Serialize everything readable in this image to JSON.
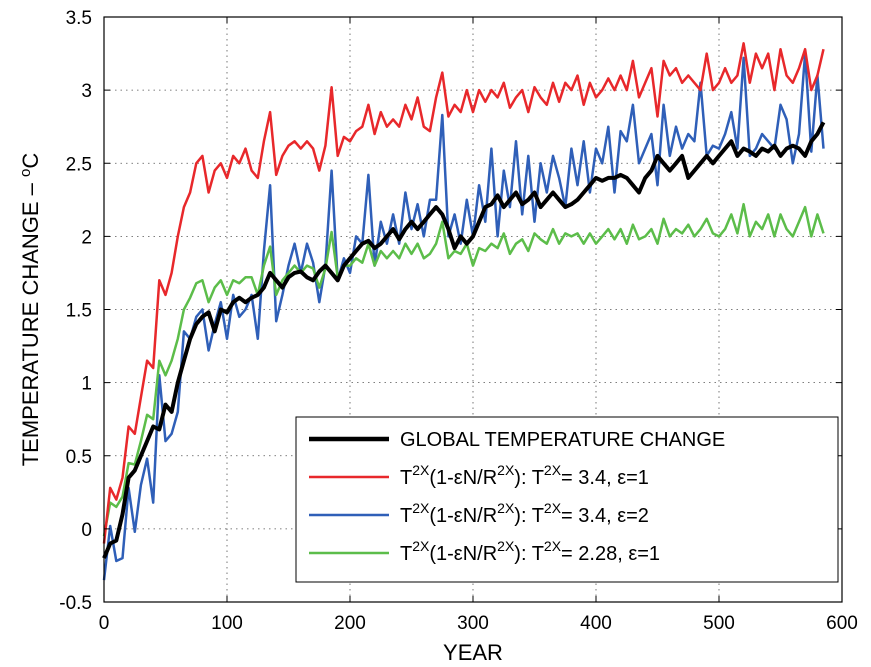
{
  "chart_data": {
    "type": "line",
    "xlabel": "YEAR",
    "ylabel_main": "TEMPERATURE CHANGE – ",
    "ylabel_sup": "o",
    "ylabel_unit": "C",
    "xlim": [
      0,
      600
    ],
    "ylim": [
      -0.5,
      3.5
    ],
    "xticks": [
      0,
      100,
      200,
      300,
      400,
      500,
      600
    ],
    "yticks": [
      -0.5,
      0,
      0.5,
      1,
      1.5,
      2,
      2.5,
      3,
      3.5
    ],
    "xtick_labels": [
      "0",
      "100",
      "200",
      "300",
      "400",
      "500",
      "600"
    ],
    "ytick_labels": [
      "-0.5",
      "0",
      "0.5",
      "1",
      "1.5",
      "2",
      "2.5",
      "3",
      "3.5"
    ],
    "grid": true,
    "legend_position": "lower-right",
    "series": [
      {
        "legend": [
          {
            "t": "GLOBAL TEMPERATURE CHANGE"
          }
        ],
        "color": "#000000",
        "width": 4,
        "x": [
          0,
          5,
          10,
          15,
          20,
          25,
          30,
          35,
          40,
          45,
          50,
          55,
          60,
          65,
          70,
          75,
          80,
          85,
          90,
          95,
          100,
          105,
          110,
          115,
          120,
          125,
          130,
          135,
          140,
          145,
          150,
          155,
          160,
          165,
          170,
          175,
          180,
          185,
          190,
          195,
          200,
          205,
          210,
          215,
          220,
          225,
          230,
          235,
          240,
          245,
          250,
          255,
          260,
          265,
          270,
          275,
          280,
          285,
          290,
          295,
          300,
          305,
          310,
          315,
          320,
          325,
          330,
          335,
          340,
          345,
          350,
          355,
          360,
          365,
          370,
          375,
          380,
          385,
          390,
          395,
          400,
          405,
          410,
          415,
          420,
          425,
          430,
          435,
          440,
          445,
          450,
          455,
          460,
          465,
          470,
          475,
          480,
          485,
          490,
          495,
          500,
          505,
          510,
          515,
          520,
          525,
          530,
          535,
          540,
          545,
          550,
          555,
          560,
          565,
          570,
          575,
          580,
          585
        ],
        "y": [
          -0.2,
          -0.1,
          -0.08,
          0.1,
          0.35,
          0.4,
          0.5,
          0.6,
          0.7,
          0.68,
          0.85,
          0.8,
          1.0,
          1.15,
          1.3,
          1.4,
          1.45,
          1.48,
          1.35,
          1.5,
          1.48,
          1.55,
          1.58,
          1.55,
          1.58,
          1.6,
          1.65,
          1.75,
          1.7,
          1.65,
          1.72,
          1.75,
          1.76,
          1.72,
          1.7,
          1.76,
          1.8,
          1.75,
          1.7,
          1.8,
          1.85,
          1.9,
          1.95,
          1.97,
          1.92,
          1.95,
          2.0,
          2.05,
          1.98,
          2.05,
          2.1,
          2.05,
          2.1,
          2.15,
          2.2,
          2.15,
          2.05,
          1.92,
          2.0,
          1.95,
          2.0,
          2.1,
          2.2,
          2.22,
          2.28,
          2.2,
          2.25,
          2.3,
          2.22,
          2.25,
          2.3,
          2.2,
          2.25,
          2.3,
          2.25,
          2.2,
          2.22,
          2.25,
          2.3,
          2.35,
          2.4,
          2.38,
          2.4,
          2.4,
          2.42,
          2.4,
          2.35,
          2.3,
          2.4,
          2.45,
          2.55,
          2.5,
          2.45,
          2.5,
          2.55,
          2.4,
          2.45,
          2.5,
          2.55,
          2.5,
          2.55,
          2.6,
          2.65,
          2.55,
          2.6,
          2.58,
          2.55,
          2.6,
          2.58,
          2.62,
          2.55,
          2.6,
          2.62,
          2.6,
          2.55,
          2.65,
          2.7,
          2.78
        ]
      },
      {
        "legend": [
          {
            "t": "T"
          },
          {
            "t": "2X",
            "sup": true
          },
          {
            "t": "(1-εN/R"
          },
          {
            "t": "2X",
            "sup": true
          },
          {
            "t": "): T"
          },
          {
            "t": "2X",
            "sup": true
          },
          {
            "t": "= 3.4, ε=1"
          }
        ],
        "color": "#e8282b",
        "width": 2.5,
        "x": [
          0,
          5,
          10,
          15,
          20,
          25,
          30,
          35,
          40,
          45,
          50,
          55,
          60,
          65,
          70,
          75,
          80,
          85,
          90,
          95,
          100,
          105,
          110,
          115,
          120,
          125,
          130,
          135,
          140,
          145,
          150,
          155,
          160,
          165,
          170,
          175,
          180,
          185,
          190,
          195,
          200,
          205,
          210,
          215,
          220,
          225,
          230,
          235,
          240,
          245,
          250,
          255,
          260,
          265,
          270,
          275,
          280,
          285,
          290,
          295,
          300,
          305,
          310,
          315,
          320,
          325,
          330,
          335,
          340,
          345,
          350,
          355,
          360,
          365,
          370,
          375,
          380,
          385,
          390,
          395,
          400,
          405,
          410,
          415,
          420,
          425,
          430,
          435,
          440,
          445,
          450,
          455,
          460,
          465,
          470,
          475,
          480,
          485,
          490,
          495,
          500,
          505,
          510,
          515,
          520,
          525,
          530,
          535,
          540,
          545,
          550,
          555,
          560,
          565,
          570,
          575,
          580,
          585
        ],
        "y": [
          -0.1,
          0.28,
          0.2,
          0.35,
          0.7,
          0.65,
          0.9,
          1.15,
          1.1,
          1.7,
          1.6,
          1.75,
          2.0,
          2.2,
          2.3,
          2.5,
          2.55,
          2.3,
          2.45,
          2.5,
          2.4,
          2.55,
          2.5,
          2.6,
          2.45,
          2.4,
          2.65,
          2.85,
          2.42,
          2.55,
          2.62,
          2.65,
          2.6,
          2.65,
          2.6,
          2.45,
          2.62,
          3.02,
          2.55,
          2.68,
          2.65,
          2.72,
          2.75,
          2.9,
          2.7,
          2.85,
          2.75,
          2.8,
          2.75,
          2.9,
          2.8,
          2.95,
          2.75,
          2.72,
          2.95,
          3.12,
          2.82,
          2.9,
          2.85,
          3.0,
          2.85,
          3.0,
          2.92,
          3.0,
          2.95,
          3.05,
          2.88,
          2.95,
          3.0,
          2.85,
          3.02,
          2.95,
          2.9,
          3.05,
          2.92,
          3.05,
          3.0,
          3.1,
          2.9,
          3.05,
          2.95,
          3.0,
          3.08,
          3.0,
          3.1,
          3.0,
          3.2,
          2.95,
          3.05,
          3.15,
          2.82,
          3.2,
          3.1,
          3.15,
          3.05,
          3.1,
          3.05,
          3.0,
          3.25,
          3.0,
          3.05,
          3.15,
          3.05,
          3.1,
          3.32,
          3.05,
          3.25,
          3.15,
          3.25,
          3.0,
          3.28,
          3.1,
          3.05,
          3.15,
          3.28,
          3.0,
          3.1,
          3.28
        ]
      },
      {
        "legend": [
          {
            "t": "T"
          },
          {
            "t": "2X",
            "sup": true
          },
          {
            "t": "(1-εN/R"
          },
          {
            "t": "2X",
            "sup": true
          },
          {
            "t": "): T"
          },
          {
            "t": "2X",
            "sup": true
          },
          {
            "t": "= 3.4, ε=2"
          }
        ],
        "color": "#2f5fb8",
        "width": 2.5,
        "x": [
          0,
          5,
          10,
          15,
          20,
          25,
          30,
          35,
          40,
          45,
          50,
          55,
          60,
          65,
          70,
          75,
          80,
          85,
          90,
          95,
          100,
          105,
          110,
          115,
          120,
          125,
          130,
          135,
          140,
          145,
          150,
          155,
          160,
          165,
          170,
          175,
          180,
          185,
          190,
          195,
          200,
          205,
          210,
          215,
          220,
          225,
          230,
          235,
          240,
          245,
          250,
          255,
          260,
          265,
          270,
          275,
          280,
          285,
          290,
          295,
          300,
          305,
          310,
          315,
          320,
          325,
          330,
          335,
          340,
          345,
          350,
          355,
          360,
          365,
          370,
          375,
          380,
          385,
          390,
          395,
          400,
          405,
          410,
          415,
          420,
          425,
          430,
          435,
          440,
          445,
          450,
          455,
          460,
          465,
          470,
          475,
          480,
          485,
          490,
          495,
          500,
          505,
          510,
          515,
          520,
          525,
          530,
          535,
          540,
          545,
          550,
          555,
          560,
          565,
          570,
          575,
          580,
          585
        ],
        "y": [
          -0.35,
          0.02,
          -0.22,
          -0.2,
          0.28,
          -0.02,
          0.3,
          0.48,
          0.18,
          1.05,
          0.6,
          0.65,
          0.8,
          1.35,
          1.3,
          1.45,
          1.5,
          1.22,
          1.4,
          1.55,
          1.3,
          1.6,
          1.45,
          1.5,
          1.6,
          1.3,
          1.9,
          2.35,
          1.42,
          1.6,
          1.8,
          1.95,
          1.75,
          1.95,
          1.82,
          1.55,
          1.8,
          2.45,
          1.7,
          1.85,
          1.75,
          2.0,
          1.95,
          2.42,
          1.8,
          2.1,
          1.95,
          2.15,
          1.95,
          2.3,
          2.05,
          2.22,
          2.0,
          2.25,
          2.25,
          2.83,
          2.0,
          2.15,
          1.95,
          2.25,
          2.0,
          2.35,
          2.1,
          2.6,
          2.0,
          2.45,
          2.2,
          2.65,
          2.15,
          2.55,
          2.1,
          2.5,
          2.3,
          2.55,
          2.4,
          2.2,
          2.6,
          2.35,
          2.65,
          2.3,
          2.6,
          2.5,
          2.75,
          2.3,
          2.72,
          2.65,
          2.9,
          2.5,
          2.6,
          2.7,
          2.35,
          2.9,
          2.55,
          2.75,
          2.6,
          2.7,
          2.65,
          3.05,
          2.55,
          2.62,
          2.6,
          2.7,
          2.85,
          2.6,
          3.22,
          2.55,
          2.6,
          2.7,
          2.65,
          2.6,
          2.9,
          2.8,
          2.5,
          2.7,
          3.25,
          2.58,
          3.1,
          2.6
        ]
      },
      {
        "legend": [
          {
            "t": "T"
          },
          {
            "t": "2X",
            "sup": true
          },
          {
            "t": "(1-εN/R"
          },
          {
            "t": "2X",
            "sup": true
          },
          {
            "t": "): T"
          },
          {
            "t": "2X",
            "sup": true
          },
          {
            "t": "= 2.28, ε=1"
          }
        ],
        "color": "#5cbd4a",
        "width": 2.5,
        "x": [
          0,
          5,
          10,
          15,
          20,
          25,
          30,
          35,
          40,
          45,
          50,
          55,
          60,
          65,
          70,
          75,
          80,
          85,
          90,
          95,
          100,
          105,
          110,
          115,
          120,
          125,
          130,
          135,
          140,
          145,
          150,
          155,
          160,
          165,
          170,
          175,
          180,
          185,
          190,
          195,
          200,
          205,
          210,
          215,
          220,
          225,
          230,
          235,
          240,
          245,
          250,
          255,
          260,
          265,
          270,
          275,
          280,
          285,
          290,
          295,
          300,
          305,
          310,
          315,
          320,
          325,
          330,
          335,
          340,
          345,
          350,
          355,
          360,
          365,
          370,
          375,
          380,
          385,
          390,
          395,
          400,
          405,
          410,
          415,
          420,
          425,
          430,
          435,
          440,
          445,
          450,
          455,
          460,
          465,
          470,
          475,
          480,
          485,
          490,
          495,
          500,
          505,
          510,
          515,
          520,
          525,
          530,
          535,
          540,
          545,
          550,
          555,
          560,
          565,
          570,
          575,
          580,
          585
        ],
        "y": [
          -0.05,
          0.18,
          0.15,
          0.22,
          0.45,
          0.44,
          0.6,
          0.78,
          0.75,
          1.15,
          1.05,
          1.15,
          1.3,
          1.5,
          1.58,
          1.68,
          1.7,
          1.55,
          1.65,
          1.7,
          1.6,
          1.7,
          1.68,
          1.72,
          1.72,
          1.6,
          1.8,
          1.93,
          1.6,
          1.7,
          1.75,
          1.8,
          1.75,
          1.8,
          1.78,
          1.65,
          1.78,
          2.03,
          1.72,
          1.8,
          1.8,
          1.85,
          1.82,
          1.95,
          1.8,
          1.9,
          1.85,
          1.9,
          1.85,
          1.95,
          1.88,
          1.95,
          1.85,
          1.88,
          1.95,
          2.1,
          1.85,
          1.9,
          1.88,
          1.95,
          1.8,
          1.92,
          1.9,
          1.95,
          1.92,
          2.02,
          1.88,
          1.95,
          1.98,
          1.9,
          2.02,
          1.98,
          1.95,
          2.05,
          1.95,
          2.02,
          2.0,
          2.02,
          1.95,
          2.02,
          1.95,
          2.0,
          2.05,
          1.98,
          2.05,
          1.95,
          2.08,
          1.98,
          2.0,
          2.05,
          1.95,
          2.12,
          2.0,
          2.05,
          2.02,
          2.08,
          2.0,
          2.05,
          2.12,
          2.02,
          2.0,
          2.05,
          2.15,
          2.02,
          2.22,
          2.0,
          2.1,
          2.05,
          2.15,
          2.0,
          2.15,
          2.05,
          2.0,
          2.1,
          2.2,
          2.0,
          2.15,
          2.02
        ]
      }
    ]
  }
}
